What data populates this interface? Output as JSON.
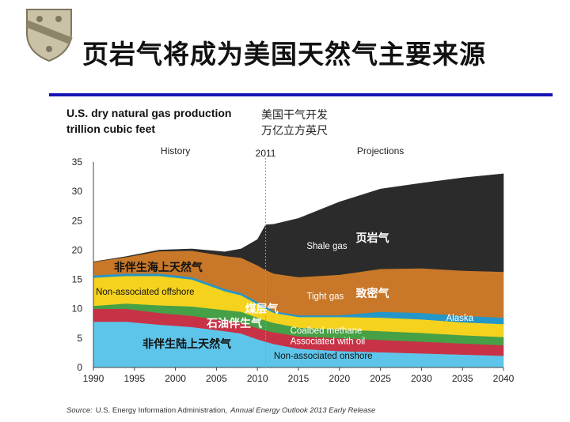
{
  "slide": {
    "title": "页岩气将成为美国天然气主要来源",
    "logo_icon": "shield-crest-icon",
    "accent_color": "#1414b4"
  },
  "chart_data": {
    "type": "area",
    "stacked": true,
    "title": "U.S. dry natural gas production",
    "subtitle": "trillion cubic feet",
    "annotation_cn": [
      "美国干气开发",
      "万亿立方英尺"
    ],
    "xlim": [
      1990,
      2040
    ],
    "ylim": [
      0,
      35
    ],
    "x_ticks": [
      1990,
      1995,
      2000,
      2005,
      2010,
      2015,
      2020,
      2025,
      2030,
      2035,
      2040
    ],
    "y_ticks": [
      0,
      5,
      10,
      15,
      20,
      25,
      30,
      35
    ],
    "divider": {
      "x": 2011,
      "label": "2011"
    },
    "periods": [
      {
        "label": "History",
        "x": 2000
      },
      {
        "label": "Projections",
        "x": 2025
      }
    ],
    "x": [
      1990,
      1994,
      1998,
      2002,
      2006,
      2008,
      2010,
      2011,
      2012,
      2015,
      2020,
      2025,
      2030,
      2035,
      2040
    ],
    "series": [
      {
        "name": "Non-associated onshore",
        "name_cn": "非伴生陆上天然气",
        "color": "#5ec5ea",
        "values": [
          7.8,
          7.8,
          7.3,
          6.9,
          6.2,
          5.8,
          4.8,
          4.4,
          4.0,
          3.2,
          2.8,
          2.6,
          2.4,
          2.2,
          2.0
        ]
      },
      {
        "name": "Associated with oil",
        "name_cn": "石油伴生气",
        "color": "#c83246",
        "values": [
          2.2,
          2.2,
          2.0,
          1.9,
          1.8,
          1.8,
          1.9,
          1.9,
          2.0,
          2.1,
          2.2,
          2.1,
          2.0,
          1.9,
          1.8
        ]
      },
      {
        "name": "Coalbed methane",
        "name_cn": "煤层气",
        "color": "#46a046",
        "values": [
          0.5,
          0.9,
          1.3,
          1.6,
          1.8,
          1.9,
          1.8,
          1.7,
          1.6,
          1.5,
          1.5,
          1.5,
          1.5,
          1.4,
          1.4
        ]
      },
      {
        "name": "Non-associated offshore",
        "name_cn": "非伴生海上天然气",
        "color": "#f5d21e",
        "values": [
          4.8,
          4.7,
          5.0,
          4.6,
          3.2,
          2.8,
          2.3,
          2.0,
          1.7,
          1.8,
          2.1,
          2.3,
          2.3,
          2.2,
          2.2
        ]
      },
      {
        "name": "Alaska",
        "name_cn": "",
        "color": "#2596c8",
        "values": [
          0.4,
          0.4,
          0.4,
          0.4,
          0.4,
          0.4,
          0.4,
          0.4,
          0.3,
          0.3,
          0.3,
          1.0,
          1.1,
          1.1,
          1.1
        ]
      },
      {
        "name": "Tight gas",
        "name_cn": "致密气",
        "color": "#c87828",
        "values": [
          2.3,
          2.8,
          3.8,
          4.5,
          5.6,
          6.0,
          6.2,
          6.2,
          6.4,
          6.5,
          6.9,
          7.3,
          7.6,
          7.7,
          7.8
        ]
      },
      {
        "name": "Shale gas",
        "name_cn": "页岩气",
        "color": "#2b2b2b",
        "values": [
          0.0,
          0.1,
          0.2,
          0.3,
          0.7,
          1.5,
          4.4,
          7.7,
          8.4,
          10.0,
          12.4,
          13.6,
          14.5,
          15.8,
          16.7
        ]
      }
    ],
    "source": {
      "prefix": "Source:",
      "agency": "U.S. Energy Information Administration,",
      "publication": "Annual Energy Outlook 2013 Early Release"
    }
  }
}
